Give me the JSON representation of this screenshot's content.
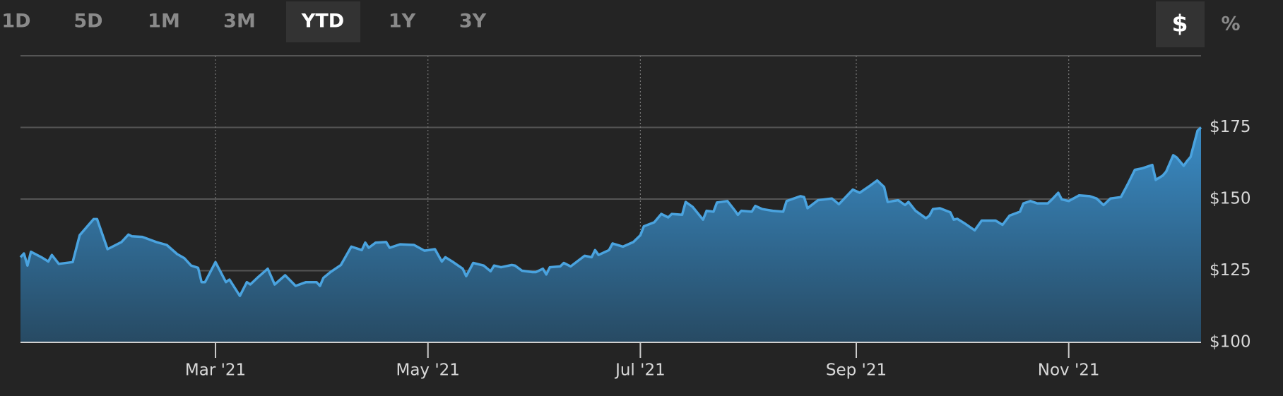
{
  "controls": {
    "ranges": [
      "1D",
      "5D",
      "1M",
      "3M",
      "YTD",
      "1Y",
      "3Y"
    ],
    "units": [
      "$",
      "%"
    ]
  },
  "chart_data": {
    "type": "area",
    "x": [
      4,
      5,
      6,
      7,
      10,
      12,
      13,
      15,
      19,
      21,
      25,
      26,
      29,
      33,
      35,
      36,
      39,
      43,
      46,
      49,
      51,
      53,
      55,
      56,
      57,
      60,
      63,
      64,
      67,
      69,
      70,
      72,
      75,
      77,
      80,
      83,
      86,
      89,
      90,
      91,
      93,
      96,
      99,
      102,
      103,
      104,
      106,
      109,
      110,
      113,
      117,
      120,
      123,
      125,
      126,
      128,
      131,
      132,
      134,
      137,
      139,
      140,
      142,
      145,
      146,
      148,
      151,
      152,
      154,
      155,
      156,
      159,
      160,
      162,
      166,
      168,
      169,
      170,
      173,
      174,
      177,
      180,
      182,
      183,
      186,
      188,
      190,
      191,
      194,
      195,
      197,
      200,
      201,
      203,
      204,
      207,
      209,
      210,
      211,
      214,
      215,
      217,
      220,
      223,
      224,
      228,
      229,
      230,
      233,
      237,
      239,
      243,
      245,
      248,
      250,
      252,
      253,
      256,
      258,
      259,
      261,
      264,
      265,
      266,
      268,
      271,
      272,
      273,
      275,
      278,
      280,
      284,
      286,
      288,
      291,
      292,
      294,
      296,
      299,
      300,
      302,
      303,
      305,
      308,
      311,
      313,
      315,
      317,
      320,
      322,
      324,
      326,
      329,
      330,
      332,
      333,
      335,
      336,
      338,
      339,
      340,
      342,
      343
    ],
    "series": [
      {
        "color": "#4aa3df",
        "values": [
          129.7,
          131,
          126.8,
          131.6,
          129.7,
          128.2,
          130.5,
          127.4,
          128,
          137.4,
          143,
          143,
          132.5,
          135,
          137.6,
          137,
          136.8,
          135,
          134,
          130.8,
          129.4,
          126.8,
          126,
          121,
          121,
          128,
          121,
          121.9,
          116.2,
          121,
          120.2,
          122.5,
          125.7,
          120.2,
          123.4,
          119.7,
          121,
          121,
          119.7,
          122.5,
          124.5,
          127,
          133.4,
          132.2,
          134.8,
          133,
          134.8,
          135,
          133,
          134.2,
          134,
          132,
          132.5,
          128.2,
          129.7,
          128.2,
          125.7,
          123.1,
          127.7,
          126.8,
          124.8,
          126.8,
          126.2,
          127,
          126.8,
          125,
          124.5,
          124.5,
          125.7,
          123.7,
          126.2,
          126.5,
          127.7,
          126.5,
          130.2,
          129.7,
          132.2,
          130.5,
          132.2,
          134.5,
          133.4,
          135,
          137.4,
          140.5,
          141.9,
          144.8,
          143.6,
          144.8,
          144.5,
          149,
          147.3,
          142.8,
          145.9,
          145.6,
          148.8,
          149.3,
          146.2,
          144.5,
          145.9,
          145.6,
          147.6,
          146.5,
          145.9,
          145.6,
          149.3,
          151,
          150.7,
          146.8,
          149.6,
          150.2,
          148.2,
          153.3,
          152.2,
          154.7,
          156.5,
          154.2,
          149,
          149.6,
          147.9,
          149,
          145.9,
          143.3,
          144.2,
          146.5,
          146.8,
          145.4,
          142.8,
          143.1,
          141.6,
          139.1,
          142.5,
          142.5,
          141,
          144.2,
          145.6,
          148.5,
          149.3,
          148.5,
          148.5,
          149.6,
          152.2,
          149.9,
          149.3,
          151.3,
          151,
          150.2,
          147.9,
          150.2,
          150.7,
          155.3,
          160.2,
          160.7,
          161.9,
          156.7,
          158.2,
          159.6,
          165.3,
          164.5,
          161.6,
          163.3,
          164.7,
          173.9,
          175
        ]
      }
    ],
    "xlim": [
      4,
      343
    ],
    "xticks": [
      {
        "value": 60,
        "label": "Mar '21"
      },
      {
        "value": 121,
        "label": "May '21"
      },
      {
        "value": 182,
        "label": "Jul '21"
      },
      {
        "value": 244,
        "label": "Sep '21"
      },
      {
        "value": 305,
        "label": "Nov '21"
      }
    ],
    "ylim": [
      100,
      200
    ],
    "yticks": [
      {
        "value": 100,
        "label": "$100"
      },
      {
        "value": 125,
        "label": "$125"
      },
      {
        "value": 150,
        "label": "$150"
      },
      {
        "value": 175,
        "label": "$175"
      }
    ],
    "grid": true
  }
}
